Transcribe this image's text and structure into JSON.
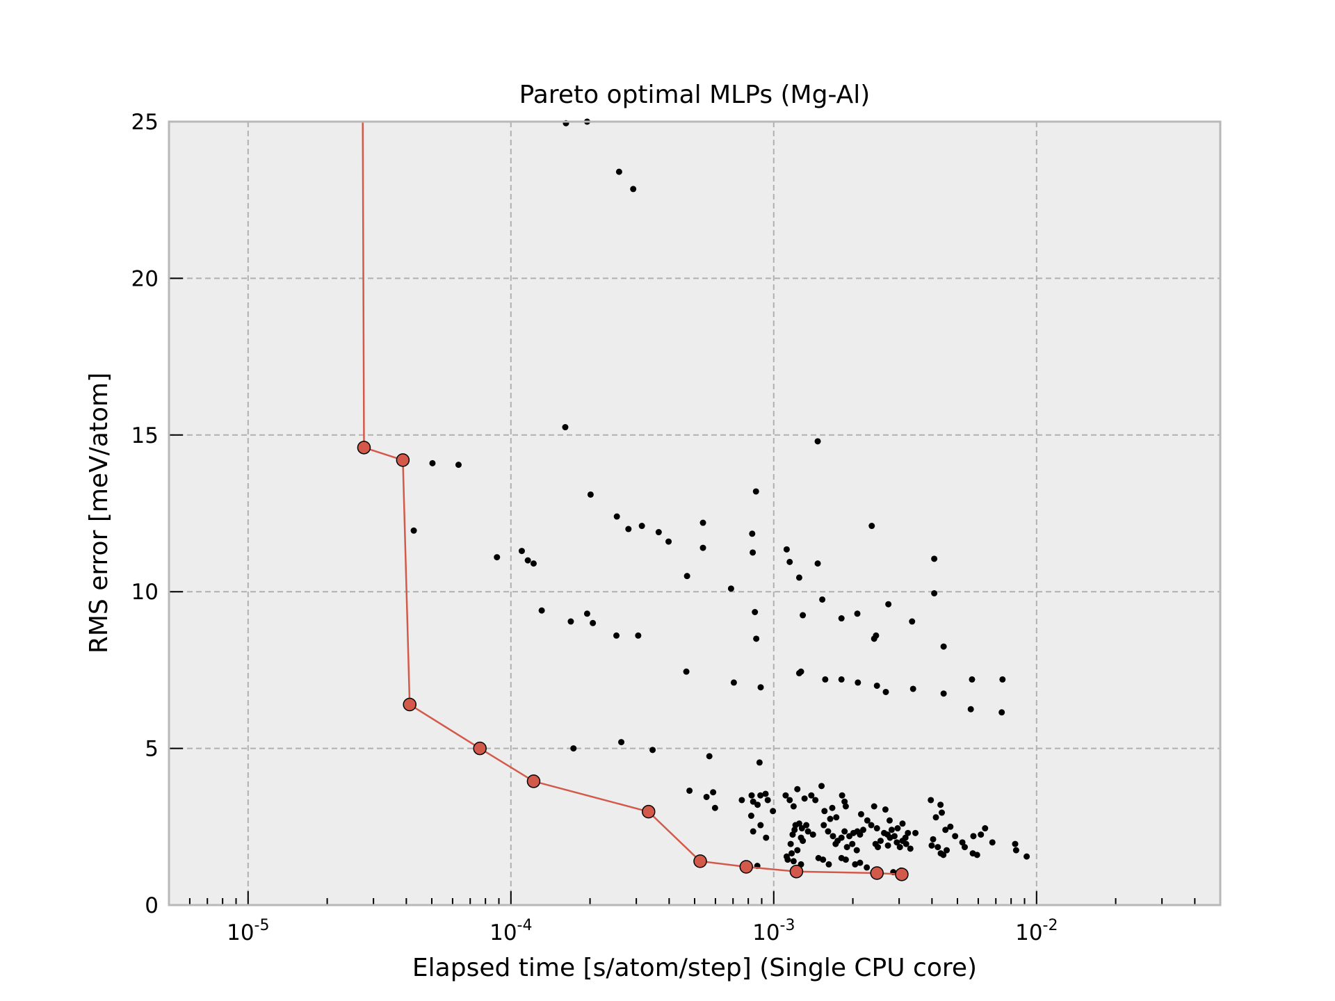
{
  "chart_data": {
    "type": "scatter",
    "title": "Pareto optimal MLPs (Mg-Al)",
    "xlabel": "Elapsed time [s/atom/step] (Single CPU core)",
    "ylabel": "RMS error [meV/atom]",
    "xscale": "log",
    "xlim": [
      5e-06,
      0.05
    ],
    "ylim": [
      0,
      25
    ],
    "x_ticks": [
      {
        "value": 1e-05,
        "base": "10",
        "exp": "-5"
      },
      {
        "value": 0.0001,
        "base": "10",
        "exp": "-4"
      },
      {
        "value": 0.001,
        "base": "10",
        "exp": "-3"
      },
      {
        "value": 0.01,
        "base": "10",
        "exp": "-2"
      }
    ],
    "y_ticks": [
      0,
      5,
      10,
      15,
      20,
      25
    ],
    "grid": true,
    "colors": {
      "pareto": "#d35a4a",
      "points": "#000000",
      "plot_background": "#ededed",
      "frame": "#b8b8b8",
      "grid": "#b0b0b0"
    },
    "series": [
      {
        "role": "all models",
        "points": [
          [
            0.000162,
            24.95
          ],
          [
            0.000195,
            25.0
          ],
          [
            0.000258,
            23.4
          ],
          [
            0.000292,
            22.85
          ],
          [
            0.000161,
            15.25
          ],
          [
            0.00147,
            14.8
          ],
          [
            5.03e-05,
            14.1
          ],
          [
            6.32e-05,
            14.05
          ],
          [
            0.000201,
            13.1
          ],
          [
            0.000856,
            13.2
          ],
          [
            4.27e-05,
            11.95
          ],
          [
            0.000253,
            12.4
          ],
          [
            0.00028,
            12.0
          ],
          [
            0.000315,
            12.1
          ],
          [
            0.000365,
            11.9
          ],
          [
            0.000398,
            11.6
          ],
          [
            0.000538,
            12.2
          ],
          [
            0.000828,
            11.85
          ],
          [
            0.00236,
            12.1
          ],
          [
            8.85e-05,
            11.1
          ],
          [
            0.00011,
            11.3
          ],
          [
            0.000116,
            11.0
          ],
          [
            0.000122,
            10.9
          ],
          [
            0.000538,
            11.4
          ],
          [
            0.000832,
            11.25
          ],
          [
            0.00112,
            11.35
          ],
          [
            0.00115,
            10.95
          ],
          [
            0.00147,
            10.9
          ],
          [
            0.00408,
            11.05
          ],
          [
            0.000468,
            10.5
          ],
          [
            0.00125,
            10.45
          ],
          [
            0.000688,
            10.1
          ],
          [
            0.00153,
            9.75
          ],
          [
            0.00408,
            9.95
          ],
          [
            0.000131,
            9.4
          ],
          [
            0.000195,
            9.3
          ],
          [
            0.000169,
            9.05
          ],
          [
            0.000205,
            9.0
          ],
          [
            0.000848,
            9.35
          ],
          [
            0.00129,
            9.25
          ],
          [
            0.00181,
            9.15
          ],
          [
            0.00208,
            9.3
          ],
          [
            0.00273,
            9.6
          ],
          [
            0.00336,
            9.05
          ],
          [
            0.000252,
            8.6
          ],
          [
            0.000305,
            8.6
          ],
          [
            0.000858,
            8.5
          ],
          [
            0.00241,
            8.5
          ],
          [
            0.00245,
            8.6
          ],
          [
            0.00443,
            8.25
          ],
          [
            0.000465,
            7.45
          ],
          [
            0.00127,
            7.45
          ],
          [
            0.00125,
            7.4
          ],
          [
            0.000705,
            7.1
          ],
          [
            0.000892,
            6.95
          ],
          [
            0.00157,
            7.2
          ],
          [
            0.00181,
            7.2
          ],
          [
            0.00209,
            7.1
          ],
          [
            0.00247,
            7.0
          ],
          [
            0.00267,
            6.8
          ],
          [
            0.00339,
            6.9
          ],
          [
            0.00443,
            6.75
          ],
          [
            0.00568,
            7.2
          ],
          [
            0.00742,
            7.2
          ],
          [
            0.00562,
            6.25
          ],
          [
            0.00737,
            6.15
          ],
          [
            0.000173,
            5.0
          ],
          [
            0.000263,
            5.2
          ],
          [
            0.000346,
            4.95
          ],
          [
            0.000569,
            4.75
          ],
          [
            0.000883,
            4.55
          ],
          [
            0.000478,
            3.65
          ],
          [
            0.000555,
            3.45
          ],
          [
            0.000588,
            3.6
          ],
          [
            0.000598,
            3.1
          ],
          [
            0.000756,
            3.35
          ],
          [
            0.000824,
            3.5
          ],
          [
            0.000835,
            3.3
          ],
          [
            0.000868,
            3.2
          ],
          [
            0.00089,
            3.5
          ],
          [
            0.000931,
            3.55
          ],
          [
            0.000949,
            3.35
          ],
          [
            0.000993,
            3.0
          ],
          [
            0.000821,
            2.85
          ],
          [
            0.000891,
            2.55
          ],
          [
            0.000835,
            2.35
          ],
          [
            0.000935,
            2.15
          ],
          [
            0.000866,
            1.25
          ],
          [
            0.00111,
            3.5
          ],
          [
            0.00115,
            3.35
          ],
          [
            0.00123,
            3.7
          ],
          [
            0.00131,
            3.4
          ],
          [
            0.00139,
            3.5
          ],
          [
            0.00144,
            3.35
          ],
          [
            0.00152,
            3.8
          ],
          [
            0.00119,
            3.15
          ],
          [
            0.00125,
            2.6
          ],
          [
            0.00128,
            2.45
          ],
          [
            0.00133,
            2.55
          ],
          [
            0.00135,
            2.35
          ],
          [
            0.00141,
            2.25
          ],
          [
            0.00121,
            2.55
          ],
          [
            0.00127,
            2.15
          ],
          [
            0.0012,
            2.4
          ],
          [
            0.00118,
            2.25
          ],
          [
            0.00129,
            2.05
          ],
          [
            0.00116,
            1.95
          ],
          [
            0.00123,
            1.75
          ],
          [
            0.00112,
            1.55
          ],
          [
            0.00117,
            1.65
          ],
          [
            0.00119,
            1.4
          ],
          [
            0.00127,
            1.3
          ],
          [
            0.00113,
            1.45
          ],
          [
            0.00148,
            1.5
          ],
          [
            0.00154,
            1.45
          ],
          [
            0.00162,
            1.3
          ],
          [
            0.00181,
            1.5
          ],
          [
            0.00188,
            1.45
          ],
          [
            0.00204,
            1.3
          ],
          [
            0.00213,
            1.35
          ],
          [
            0.00226,
            1.2
          ],
          [
            0.00156,
            3.0
          ],
          [
            0.00167,
            3.1
          ],
          [
            0.00182,
            3.5
          ],
          [
            0.00186,
            3.3
          ],
          [
            0.00188,
            3.15
          ],
          [
            0.00164,
            2.75
          ],
          [
            0.00173,
            2.8
          ],
          [
            0.00155,
            2.55
          ],
          [
            0.00161,
            2.35
          ],
          [
            0.00168,
            2.2
          ],
          [
            0.00175,
            2.05
          ],
          [
            0.00181,
            2.15
          ],
          [
            0.00186,
            2.35
          ],
          [
            0.00194,
            2.2
          ],
          [
            0.00201,
            2.3
          ],
          [
            0.00208,
            2.35
          ],
          [
            0.00213,
            2.25
          ],
          [
            0.00219,
            2.4
          ],
          [
            0.00227,
            2.7
          ],
          [
            0.00235,
            2.55
          ],
          [
            0.0019,
            1.85
          ],
          [
            0.00199,
            1.95
          ],
          [
            0.00207,
            1.75
          ],
          [
            0.00172,
            1.95
          ],
          [
            0.00215,
            2.9
          ],
          [
            0.00241,
            3.15
          ],
          [
            0.00247,
            2.45
          ],
          [
            0.00255,
            2.05
          ],
          [
            0.00263,
            2.3
          ],
          [
            0.00271,
            2.25
          ],
          [
            0.00277,
            2.15
          ],
          [
            0.00281,
            2.4
          ],
          [
            0.00288,
            2.2
          ],
          [
            0.00294,
            2.0
          ],
          [
            0.00302,
            1.85
          ],
          [
            0.00309,
            2.05
          ],
          [
            0.00317,
            2.15
          ],
          [
            0.00324,
            2.3
          ],
          [
            0.00266,
            3.05
          ],
          [
            0.00276,
            2.7
          ],
          [
            0.00296,
            2.45
          ],
          [
            0.00309,
            2.6
          ],
          [
            0.00319,
            1.95
          ],
          [
            0.00331,
            1.8
          ],
          [
            0.00346,
            2.3
          ],
          [
            0.00249,
            1.85
          ],
          [
            0.00272,
            1.9
          ],
          [
            0.00285,
            1.05
          ],
          [
            0.00305,
            1.1
          ],
          [
            0.00244,
            1.95
          ],
          [
            0.00396,
            3.35
          ],
          [
            0.00431,
            3.2
          ],
          [
            0.00414,
            2.8
          ],
          [
            0.00436,
            2.95
          ],
          [
            0.0045,
            2.4
          ],
          [
            0.0047,
            2.5
          ],
          [
            0.00404,
            2.1
          ],
          [
            0.00421,
            1.85
          ],
          [
            0.00432,
            1.65
          ],
          [
            0.00442,
            1.6
          ],
          [
            0.00399,
            1.9
          ],
          [
            0.00455,
            1.75
          ],
          [
            0.0049,
            2.2
          ],
          [
            0.00522,
            2.0
          ],
          [
            0.00533,
            1.85
          ],
          [
            0.00575,
            2.2
          ],
          [
            0.00614,
            2.25
          ],
          [
            0.00637,
            2.45
          ],
          [
            0.00679,
            2.0
          ],
          [
            0.00572,
            1.65
          ],
          [
            0.00594,
            1.6
          ],
          [
            0.00829,
            1.95
          ],
          [
            0.00836,
            1.75
          ],
          [
            0.00917,
            1.55
          ]
        ]
      },
      {
        "role": "pareto front",
        "points": [
          [
            2.73e-05,
            25.0
          ],
          [
            2.76e-05,
            14.6
          ],
          [
            3.88e-05,
            14.2
          ],
          [
            4.12e-05,
            6.4
          ],
          [
            7.62e-05,
            5.0
          ],
          [
            0.000122,
            3.95
          ],
          [
            0.000334,
            2.98
          ],
          [
            0.000525,
            1.4
          ],
          [
            0.000786,
            1.22
          ],
          [
            0.00122,
            1.07
          ],
          [
            0.00247,
            1.02
          ],
          [
            0.00307,
            0.98
          ]
        ]
      }
    ]
  }
}
